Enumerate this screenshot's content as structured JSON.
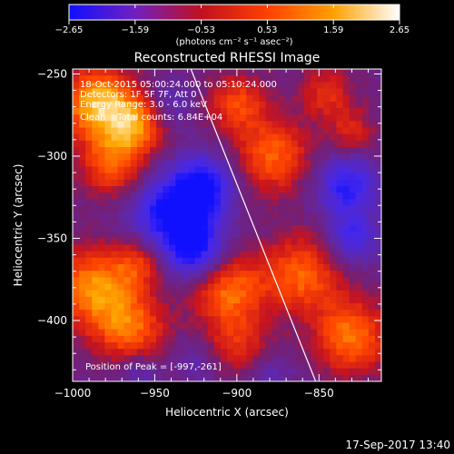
{
  "chart_data": {
    "type": "heatmap",
    "title": "Reconstructed RHESSI Image",
    "xlabel": "Heliocentric X (arcsec)",
    "ylabel": "Heliocentric Y (arcsec)",
    "xlim": [
      -1000,
      -812
    ],
    "ylim": [
      -437,
      -247
    ],
    "x_ticks": [
      -1000,
      -950,
      -900,
      -850
    ],
    "x_tick_labels": [
      "−1000",
      "−950",
      "−900",
      "−850"
    ],
    "y_ticks": [
      -250,
      -300,
      -350,
      -400
    ],
    "y_tick_labels": [
      "−250",
      "−300",
      "−350",
      "−400"
    ],
    "colorbar": {
      "min": -2.65,
      "max": 2.65,
      "ticks": [
        -2.65,
        -1.59,
        -0.53,
        0.53,
        1.59,
        2.65
      ],
      "tick_labels": [
        "−2.65",
        "−1.59",
        "−0.53",
        "0.53",
        "1.59",
        "2.65"
      ],
      "unit_label": "(photons cm⁻² s⁻¹ asec⁻²)",
      "colors": [
        "#1010ff",
        "#7020c0",
        "#c01020",
        "#ff4000",
        "#ffa000",
        "#ffffff"
      ]
    },
    "info_lines": [
      "18-Oct-2015 05:00:24.000 to 05:10:24.000",
      "Detectors: 1F 5F 7F, Att 0",
      "Energy Range: 3.0 - 6.0 keV",
      "Clean    Total counts: 6.84E+04"
    ],
    "peak_label": "Position of Peak = [-997,-261]",
    "peak": [
      -997,
      -261
    ],
    "limb_line": {
      "x": [
        -928,
        -852
      ],
      "y": [
        -247,
        -437
      ]
    },
    "regions": [
      {
        "x": -985,
        "y": -268,
        "v": 2.6,
        "s": 22
      },
      {
        "x": -960,
        "y": -280,
        "v": 1.9,
        "s": 18
      },
      {
        "x": -975,
        "y": -305,
        "v": 1.7,
        "s": 20
      },
      {
        "x": -900,
        "y": -268,
        "v": 1.5,
        "s": 18
      },
      {
        "x": -878,
        "y": -300,
        "v": 1.8,
        "s": 22
      },
      {
        "x": -845,
        "y": -262,
        "v": 1.2,
        "s": 16
      },
      {
        "x": -830,
        "y": -285,
        "v": 1.0,
        "s": 14
      },
      {
        "x": -988,
        "y": -380,
        "v": 2.1,
        "s": 24
      },
      {
        "x": -965,
        "y": -405,
        "v": 1.8,
        "s": 22
      },
      {
        "x": -960,
        "y": -365,
        "v": 1.3,
        "s": 16
      },
      {
        "x": -905,
        "y": -382,
        "v": 1.9,
        "s": 22
      },
      {
        "x": -860,
        "y": -372,
        "v": 1.8,
        "s": 24
      },
      {
        "x": -830,
        "y": -410,
        "v": 2.0,
        "s": 22
      },
      {
        "x": -900,
        "y": -415,
        "v": 1.1,
        "s": 18
      },
      {
        "x": -940,
        "y": -335,
        "v": -2.2,
        "s": 24
      },
      {
        "x": -920,
        "y": -318,
        "v": -2.0,
        "s": 18
      },
      {
        "x": -925,
        "y": -358,
        "v": -1.9,
        "s": 18
      },
      {
        "x": -833,
        "y": -318,
        "v": -1.8,
        "s": 18
      },
      {
        "x": -830,
        "y": -350,
        "v": -1.5,
        "s": 16
      },
      {
        "x": -942,
        "y": -270,
        "v": -0.9,
        "s": 16
      },
      {
        "x": -960,
        "y": -432,
        "v": -0.8,
        "s": 14
      },
      {
        "x": -925,
        "y": -425,
        "v": -0.6,
        "s": 14
      },
      {
        "x": -880,
        "y": -437,
        "v": -0.7,
        "s": 14
      }
    ]
  },
  "footer": {
    "timestamp": "17-Sep-2017 13:40"
  }
}
